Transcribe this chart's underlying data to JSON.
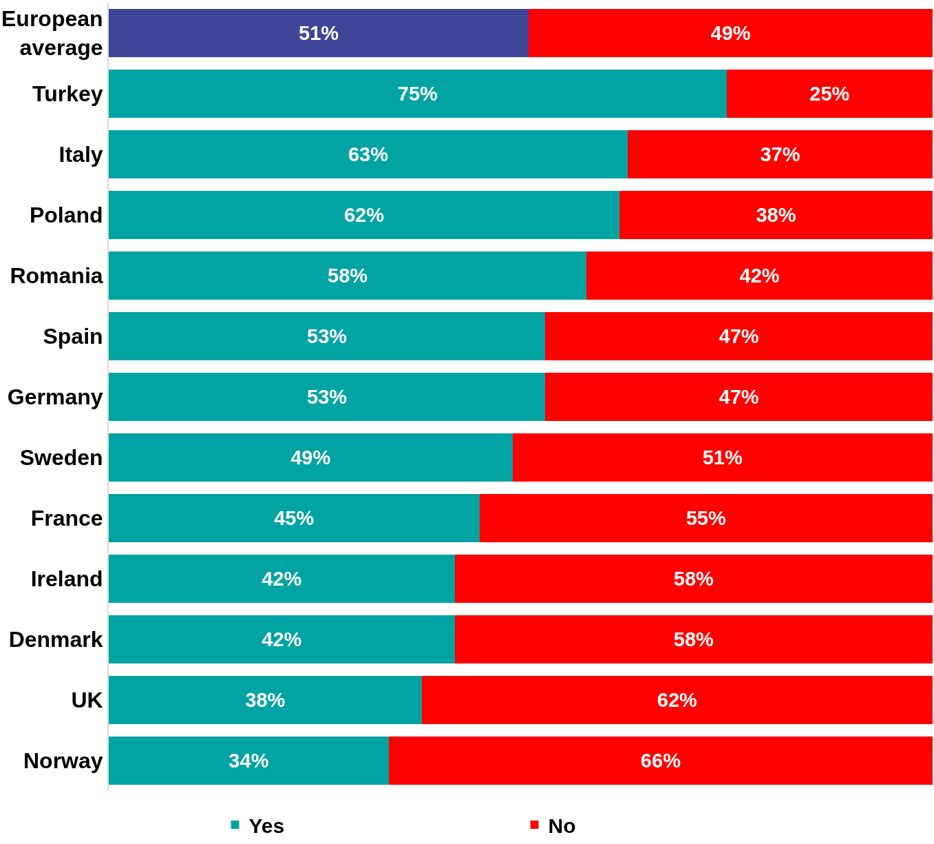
{
  "chart_data": {
    "type": "bar",
    "orientation": "horizontal",
    "stacked": true,
    "categories": [
      "European average",
      "Turkey",
      "Italy",
      "Poland",
      "Romania",
      "Spain",
      "Germany",
      "Sweden",
      "France",
      "Ireland",
      "Denmark",
      "UK",
      "Norway"
    ],
    "series": [
      {
        "name": "Yes",
        "color": "#02a3a3",
        "colors": [
          "#3f4597",
          "#02a3a3",
          "#02a3a3",
          "#02a3a3",
          "#02a3a3",
          "#02a3a3",
          "#02a3a3",
          "#02a3a3",
          "#02a3a3",
          "#02a3a3",
          "#02a3a3",
          "#02a3a3",
          "#02a3a3"
        ],
        "values": [
          51,
          75,
          63,
          62,
          58,
          53,
          53,
          49,
          45,
          42,
          42,
          38,
          34
        ],
        "value_labels": [
          "51%",
          "75%",
          "63%",
          "62%",
          "58%",
          "53%",
          "53%",
          "49%",
          "45%",
          "42%",
          "42%",
          "38%",
          "34%"
        ]
      },
      {
        "name": "No",
        "color": "#ff0000",
        "values": [
          49,
          25,
          37,
          38,
          42,
          47,
          47,
          51,
          55,
          58,
          58,
          62,
          66
        ],
        "value_labels": [
          "49%",
          "25%",
          "37%",
          "38%",
          "42%",
          "47%",
          "47%",
          "51%",
          "55%",
          "58%",
          "58%",
          "62%",
          "66%"
        ]
      }
    ],
    "xlim": [
      0,
      100
    ],
    "tick_labels": "y",
    "legend": "bottom"
  }
}
